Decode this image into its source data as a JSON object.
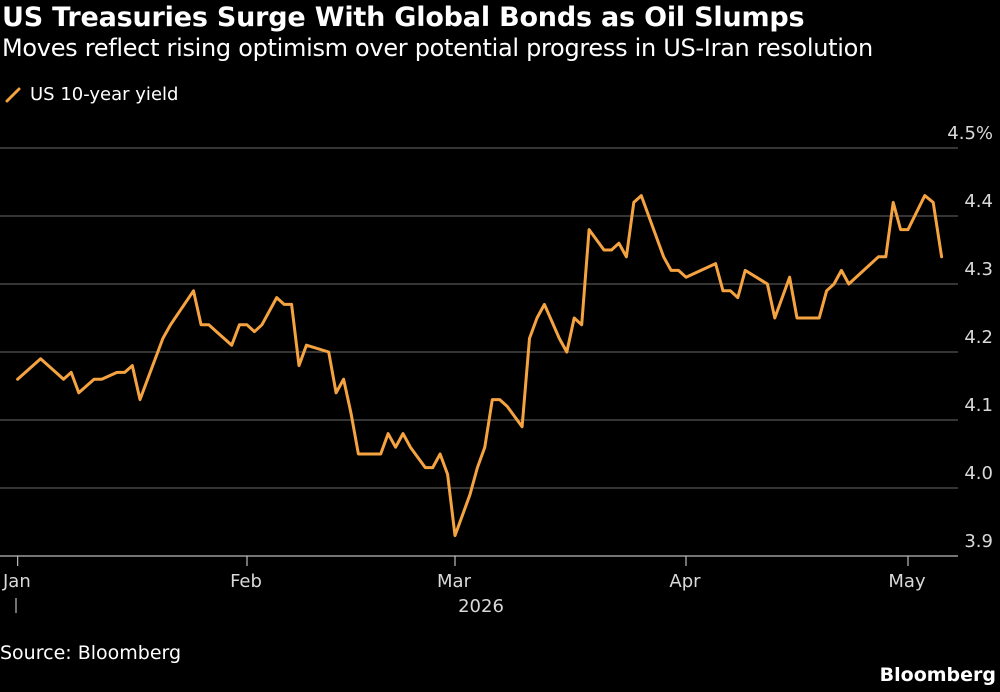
{
  "title": "US Treasuries Surge With Global Bonds as Oil Slumps",
  "subtitle": "Moves reflect rising optimism over potential progress in US-Iran resolution",
  "source": "Source: Bloomberg",
  "brand": "Bloomberg",
  "colors": {
    "background": "#000000",
    "line": "#f5a340",
    "grid": "#555555",
    "text": "#ffffff"
  },
  "chart_data": {
    "type": "line",
    "title": "US Treasuries Surge With Global Bonds as Oil Slumps",
    "subtitle": "Moves reflect rising optimism over potential progress in US-Iran resolution",
    "xlabel": "2026",
    "ylabel": "",
    "ylim": [
      3.9,
      4.5
    ],
    "y_ticks": [
      {
        "value": 3.9,
        "label": "3.9"
      },
      {
        "value": 4.0,
        "label": "4.0"
      },
      {
        "value": 4.1,
        "label": "4.1"
      },
      {
        "value": 4.2,
        "label": "4.2"
      },
      {
        "value": 4.3,
        "label": "4.3"
      },
      {
        "value": 4.4,
        "label": "4.4"
      },
      {
        "value": 4.5,
        "label": "4.5%"
      }
    ],
    "x_ticks": [
      {
        "date": "2026-01-02",
        "label": "Jan"
      },
      {
        "date": "2026-02-01",
        "label": "Feb"
      },
      {
        "date": "2026-03-01",
        "label": "Mar"
      },
      {
        "date": "2026-04-01",
        "label": "Apr"
      },
      {
        "date": "2026-05-01",
        "label": "May"
      }
    ],
    "x_year_label": "2026",
    "grid": true,
    "legend_position": "top-left",
    "series": [
      {
        "name": "US 10-year yield",
        "color": "#f5a340",
        "points": [
          [
            "2026-01-02",
            4.16
          ],
          [
            "2026-01-05",
            4.19
          ],
          [
            "2026-01-07",
            4.17
          ],
          [
            "2026-01-08",
            4.16
          ],
          [
            "2026-01-09",
            4.17
          ],
          [
            "2026-01-10",
            4.14
          ],
          [
            "2026-01-12",
            4.16
          ],
          [
            "2026-01-13",
            4.16
          ],
          [
            "2026-01-15",
            4.17
          ],
          [
            "2026-01-16",
            4.17
          ],
          [
            "2026-01-17",
            4.18
          ],
          [
            "2026-01-18",
            4.13
          ],
          [
            "2026-01-19",
            4.16
          ],
          [
            "2026-01-21",
            4.22
          ],
          [
            "2026-01-22",
            4.24
          ],
          [
            "2026-01-25",
            4.29
          ],
          [
            "2026-01-26",
            4.24
          ],
          [
            "2026-01-27",
            4.24
          ],
          [
            "2026-01-28",
            4.23
          ],
          [
            "2026-01-30",
            4.21
          ],
          [
            "2026-01-31",
            4.24
          ],
          [
            "2026-02-01",
            4.24
          ],
          [
            "2026-02-02",
            4.23
          ],
          [
            "2026-02-03",
            4.24
          ],
          [
            "2026-02-05",
            4.28
          ],
          [
            "2026-02-06",
            4.27
          ],
          [
            "2026-02-07",
            4.27
          ],
          [
            "2026-02-08",
            4.18
          ],
          [
            "2026-02-09",
            4.21
          ],
          [
            "2026-02-12",
            4.2
          ],
          [
            "2026-02-13",
            4.14
          ],
          [
            "2026-02-14",
            4.16
          ],
          [
            "2026-02-15",
            4.11
          ],
          [
            "2026-02-16",
            4.05
          ],
          [
            "2026-02-19",
            4.05
          ],
          [
            "2026-02-20",
            4.08
          ],
          [
            "2026-02-21",
            4.06
          ],
          [
            "2026-02-22",
            4.08
          ],
          [
            "2026-02-23",
            4.06
          ],
          [
            "2026-02-25",
            4.03
          ],
          [
            "2026-02-26",
            4.03
          ],
          [
            "2026-02-27",
            4.05
          ],
          [
            "2026-02-28",
            4.02
          ],
          [
            "2026-03-01",
            3.93
          ],
          [
            "2026-03-03",
            3.99
          ],
          [
            "2026-03-04",
            4.03
          ],
          [
            "2026-03-05",
            4.06
          ],
          [
            "2026-03-06",
            4.13
          ],
          [
            "2026-03-07",
            4.13
          ],
          [
            "2026-03-08",
            4.12
          ],
          [
            "2026-03-10",
            4.09
          ],
          [
            "2026-03-11",
            4.22
          ],
          [
            "2026-03-12",
            4.25
          ],
          [
            "2026-03-13",
            4.27
          ],
          [
            "2026-03-15",
            4.22
          ],
          [
            "2026-03-16",
            4.2
          ],
          [
            "2026-03-17",
            4.25
          ],
          [
            "2026-03-18",
            4.24
          ],
          [
            "2026-03-19",
            4.38
          ],
          [
            "2026-03-21",
            4.35
          ],
          [
            "2026-03-22",
            4.35
          ],
          [
            "2026-03-23",
            4.36
          ],
          [
            "2026-03-24",
            4.34
          ],
          [
            "2026-03-25",
            4.42
          ],
          [
            "2026-03-26",
            4.43
          ],
          [
            "2026-03-27",
            4.4
          ],
          [
            "2026-03-29",
            4.34
          ],
          [
            "2026-03-30",
            4.32
          ],
          [
            "2026-03-31",
            4.32
          ],
          [
            "2026-04-01",
            4.31
          ],
          [
            "2026-04-05",
            4.33
          ],
          [
            "2026-04-06",
            4.29
          ],
          [
            "2026-04-07",
            4.29
          ],
          [
            "2026-04-08",
            4.28
          ],
          [
            "2026-04-09",
            4.32
          ],
          [
            "2026-04-12",
            4.3
          ],
          [
            "2026-04-13",
            4.25
          ],
          [
            "2026-04-15",
            4.31
          ],
          [
            "2026-04-16",
            4.25
          ],
          [
            "2026-04-19",
            4.25
          ],
          [
            "2026-04-20",
            4.29
          ],
          [
            "2026-04-21",
            4.3
          ],
          [
            "2026-04-22",
            4.32
          ],
          [
            "2026-04-23",
            4.3
          ],
          [
            "2026-04-26",
            4.33
          ],
          [
            "2026-04-27",
            4.34
          ],
          [
            "2026-04-28",
            4.34
          ],
          [
            "2026-04-29",
            4.42
          ],
          [
            "2026-04-30",
            4.38
          ],
          [
            "2026-05-01",
            4.38
          ],
          [
            "2026-05-03",
            4.43
          ],
          [
            "2026-05-04",
            4.42
          ],
          [
            "2026-05-05",
            4.34
          ]
        ]
      }
    ]
  }
}
